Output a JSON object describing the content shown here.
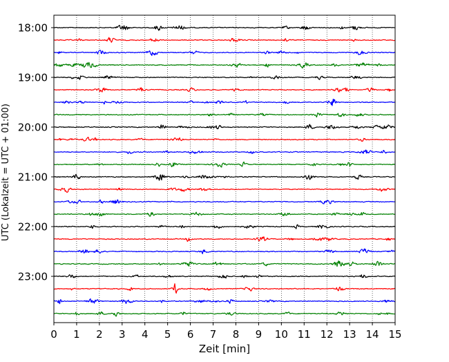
{
  "chart_data": {
    "type": "line",
    "title": "",
    "xlabel": "Zeit  [min]",
    "ylabel": "UTC (Lokalzeit = UTC + 01:00)",
    "xlim": [
      0,
      15
    ],
    "x_ticks": [
      "0",
      "1",
      "2",
      "3",
      "4",
      "5",
      "6",
      "7",
      "8",
      "9",
      "10",
      "11",
      "12",
      "13",
      "14",
      "15"
    ],
    "y_ticks": [
      "18:00",
      "19:00",
      "20:00",
      "21:00",
      "22:00",
      "23:00"
    ],
    "row_minutes": 15,
    "row_start": "18:00",
    "rows": 24,
    "vertical_grid": true,
    "grid_style": "dotted",
    "trace_colors": [
      "#000000",
      "#ff0000",
      "#0000ff",
      "#008000"
    ],
    "amplitude_scale": 1.0
  }
}
